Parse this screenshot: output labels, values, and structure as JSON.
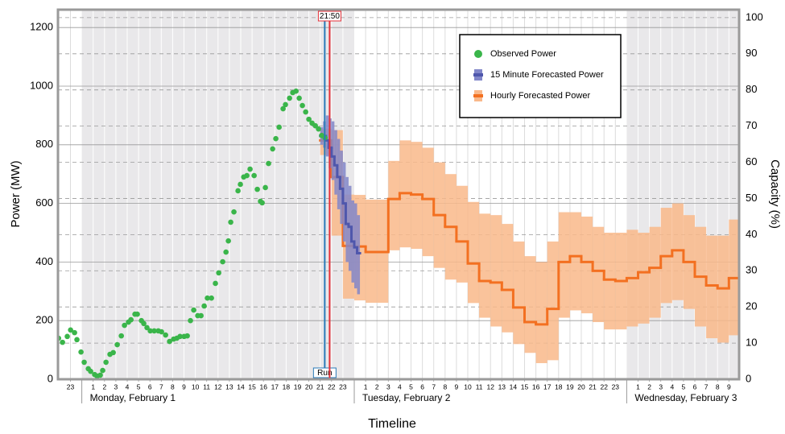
{
  "chart_data": {
    "type": "line",
    "xlabel": "Timeline",
    "ylabel": "Power (MW)",
    "y2label": "Capacity (%)",
    "xlim": [
      -2.1,
      57.9
    ],
    "ylim": [
      0,
      1261
    ],
    "y2lim": [
      0,
      102.2
    ],
    "yticks": [
      0,
      200,
      400,
      600,
      800,
      1000,
      1200
    ],
    "y2ticks": [
      0,
      10,
      20,
      30,
      40,
      50,
      60,
      70,
      80,
      90,
      100
    ],
    "xticks": [
      {
        "value": -1,
        "label": "23"
      },
      1,
      2,
      3,
      4,
      5,
      6,
      7,
      8,
      9,
      10,
      11,
      12,
      13,
      14,
      15,
      16,
      17,
      18,
      19,
      20,
      21,
      22,
      23,
      {
        "value": 25,
        "label": "1"
      },
      {
        "value": 26,
        "label": "2"
      },
      {
        "value": 27,
        "label": "3"
      },
      {
        "value": 28,
        "label": "4"
      },
      {
        "value": 29,
        "label": "5"
      },
      {
        "value": 30,
        "label": "6"
      },
      {
        "value": 31,
        "label": "7"
      },
      {
        "value": 32,
        "label": "8"
      },
      {
        "value": 33,
        "label": "9"
      },
      {
        "value": 34,
        "label": "10"
      },
      {
        "value": 35,
        "label": "11"
      },
      {
        "value": 36,
        "label": "12"
      },
      {
        "value": 37,
        "label": "13"
      },
      {
        "value": 38,
        "label": "14"
      },
      {
        "value": 39,
        "label": "15"
      },
      {
        "value": 40,
        "label": "16"
      },
      {
        "value": 41,
        "label": "17"
      },
      {
        "value": 42,
        "label": "18"
      },
      {
        "value": 43,
        "label": "19"
      },
      {
        "value": 44,
        "label": "20"
      },
      {
        "value": 45,
        "label": "21"
      },
      {
        "value": 46,
        "label": "22"
      },
      {
        "value": 47,
        "label": "23"
      },
      {
        "value": 49,
        "label": "1"
      },
      {
        "value": 50,
        "label": "2"
      },
      {
        "value": 51,
        "label": "3"
      },
      {
        "value": 52,
        "label": "4"
      },
      {
        "value": 53,
        "label": "5"
      },
      {
        "value": 54,
        "label": "6"
      },
      {
        "value": 55,
        "label": "7"
      },
      {
        "value": 56,
        "label": "8"
      },
      {
        "value": 57,
        "label": "9"
      }
    ],
    "days": [
      {
        "label": "Monday, February 1",
        "start": 0,
        "shaded": true
      },
      {
        "label": "Tuesday, February 2",
        "start": 24,
        "shaded": false
      },
      {
        "label": "Wednesday, February 3",
        "start": 48,
        "shaded": true
      }
    ],
    "grid": true,
    "legend": "upper right",
    "markers": [
      {
        "label": "Run",
        "x": 21.4,
        "color": "#2a7ab8",
        "position": "bottom"
      },
      {
        "label": "21:50",
        "x": 21.83,
        "color": "#e5323b",
        "position": "top"
      }
    ],
    "series": [
      {
        "name": "Observed Power",
        "type": "scatter",
        "color": "#3ab54a",
        "x": [
          -2.05,
          -1.7,
          -1.28,
          -0.99,
          -0.64,
          -0.43,
          -0.07,
          0.21,
          0.57,
          0.78,
          1.13,
          1.35,
          1.63,
          1.84,
          2.13,
          2.48,
          2.77,
          3.12,
          3.48,
          3.76,
          4.11,
          4.33,
          4.68,
          4.89,
          5.25,
          5.46,
          5.74,
          6.03,
          6.38,
          6.74,
          7.02,
          7.38,
          7.73,
          8.09,
          8.37,
          8.65,
          9.01,
          9.29,
          9.57,
          9.86,
          10.21,
          10.5,
          10.78,
          11.06,
          11.42,
          11.77,
          12.06,
          12.41,
          12.7,
          12.91,
          13.12,
          13.4,
          13.76,
          13.97,
          14.26,
          14.54,
          14.82,
          15.18,
          15.46,
          15.74,
          15.89,
          16.17,
          16.45,
          16.81,
          17.09,
          17.38,
          17.73,
          17.94,
          18.3,
          18.58,
          18.87,
          19.15,
          19.43,
          19.72,
          20.0,
          20.28,
          20.57,
          20.85,
          21.13,
          21.42
        ],
        "values": [
          140,
          126,
          146,
          168,
          159,
          135,
          93,
          58,
          36,
          27,
          16,
          11,
          14,
          30,
          58,
          85,
          91,
          118,
          148,
          184,
          195,
          203,
          222,
          222,
          200,
          190,
          176,
          165,
          165,
          165,
          162,
          151,
          129,
          137,
          140,
          146,
          146,
          148,
          200,
          236,
          217,
          217,
          250,
          277,
          277,
          327,
          363,
          401,
          434,
          472,
          536,
          571,
          643,
          665,
          690,
          695,
          717,
          695,
          648,
          607,
          602,
          654,
          736,
          786,
          821,
          860,
          923,
          937,
          959,
          978,
          983,
          959,
          934,
          912,
          887,
          874,
          865,
          854,
          832,
          824
        ]
      },
      {
        "name": "Hourly Forecasted Power",
        "type": "step",
        "color": "#f37021",
        "band_color": "#f9b88a",
        "step": 1,
        "x": [
          21,
          22,
          23,
          24,
          25,
          26,
          27,
          28,
          29,
          30,
          31,
          32,
          33,
          34,
          35,
          36,
          37,
          38,
          39,
          40,
          41,
          42,
          43,
          44,
          45,
          46,
          47,
          48,
          49,
          50,
          51,
          52,
          53,
          54,
          55,
          56,
          57
        ],
        "values": [
          815,
          690,
          455,
          453,
          434,
          434,
          615,
          635,
          630,
          615,
          560,
          520,
          470,
          395,
          335,
          330,
          305,
          245,
          195,
          187,
          240,
          400,
          420,
          400,
          370,
          340,
          335,
          345,
          365,
          380,
          420,
          440,
          400,
          350,
          320,
          310,
          345
        ],
        "lower": [
          765,
          490,
          275,
          269,
          261,
          261,
          440,
          450,
          445,
          420,
          380,
          340,
          330,
          260,
          210,
          180,
          160,
          120,
          90,
          55,
          65,
          210,
          235,
          225,
          195,
          170,
          170,
          180,
          190,
          210,
          260,
          270,
          240,
          180,
          140,
          125,
          150
        ],
        "upper": [
          855,
          850,
          630,
          629,
          613,
          613,
          745,
          815,
          810,
          790,
          740,
          700,
          660,
          605,
          565,
          560,
          530,
          470,
          420,
          400,
          470,
          570,
          570,
          555,
          520,
          500,
          500,
          510,
          500,
          520,
          585,
          600,
          560,
          520,
          490,
          490,
          545
        ]
      },
      {
        "name": "15 Minute Forecasted Power",
        "type": "step",
        "color": "#4f57ac",
        "band_color": "#8186c9",
        "step": 0.25,
        "x": [
          21,
          21.25,
          21.5,
          21.75,
          22,
          22.25,
          22.5,
          22.75,
          23,
          23.25,
          23.5,
          23.75,
          24,
          24.25
        ],
        "values": [
          830,
          830,
          815,
          790,
          760,
          730,
          690,
          650,
          600,
          530,
          520,
          470,
          450,
          430
        ],
        "lower": [
          800,
          790,
          760,
          720,
          680,
          630,
          580,
          530,
          470,
          400,
          370,
          330,
          310,
          290
        ],
        "upper": [
          860,
          880,
          900,
          890,
          880,
          850,
          820,
          780,
          740,
          690,
          660,
          610,
          600,
          560
        ]
      }
    ],
    "legend_order": [
      0,
      2,
      1
    ]
  }
}
